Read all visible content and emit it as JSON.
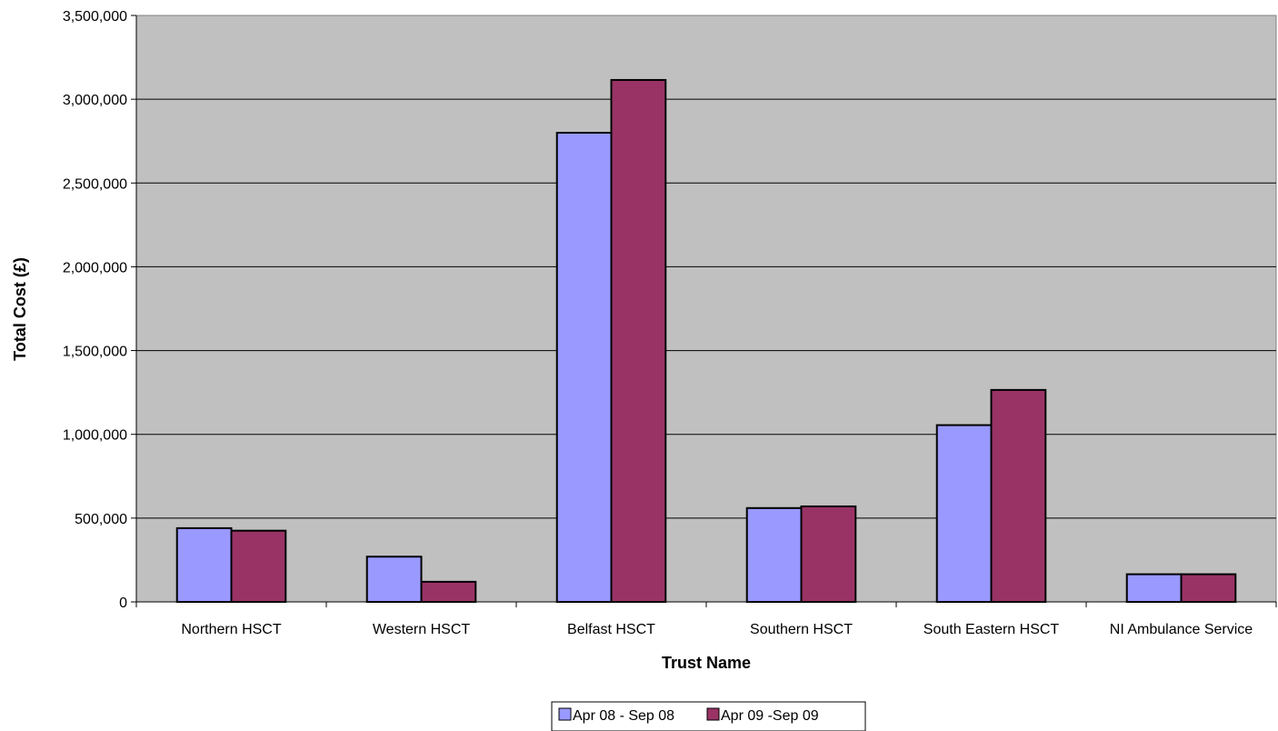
{
  "chart_data": {
    "type": "bar",
    "title": "",
    "xlabel": "Trust Name",
    "ylabel": "Total Cost (£)",
    "categories": [
      "Northern HSCT",
      "Western HSCT",
      "Belfast HSCT",
      "Southern HSCT",
      "South Eastern HSCT",
      "NI Ambulance Service"
    ],
    "series": [
      {
        "name": "Apr 08 - Sep 08",
        "color": "#9999ff",
        "values": [
          440000,
          270000,
          2800000,
          560000,
          1055000,
          165000
        ]
      },
      {
        "name": "Apr 09 -Sep 09",
        "color": "#993366",
        "values": [
          425000,
          120000,
          3115000,
          570000,
          1265000,
          165000
        ]
      }
    ],
    "ylim": [
      0,
      3500000
    ],
    "ytick_step": 500000,
    "ytick_labels": [
      "0",
      "500,000",
      "1,000,000",
      "1,500,000",
      "2,000,000",
      "2,500,000",
      "3,000,000",
      "3,500,000"
    ],
    "grid": true,
    "plot_background": "#c0c0c0",
    "legend_position": "bottom-center"
  }
}
